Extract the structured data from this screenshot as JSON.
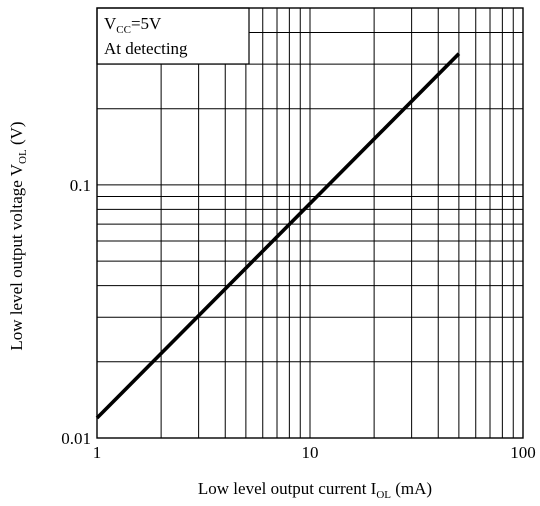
{
  "chart_data": {
    "type": "line",
    "xscale": "log",
    "yscale": "log",
    "xlim": [
      1,
      100
    ],
    "ylim": [
      0.01,
      0.5
    ],
    "grid": true,
    "x_ticks": [
      {
        "value": 1,
        "label": "1"
      },
      {
        "value": 10,
        "label": "10"
      },
      {
        "value": 100,
        "label": "100"
      }
    ],
    "y_ticks": [
      {
        "value": 0.01,
        "label": "0.01"
      },
      {
        "value": 0.1,
        "label": "0.1"
      }
    ],
    "xlabel": {
      "main": "Low level output current I",
      "sub": "OL",
      "unit": " (mA)"
    },
    "ylabel": {
      "main": "Low level output voltage V",
      "sub": "OL",
      "unit": " (V)"
    },
    "annotation": {
      "line1_main": "V",
      "line1_sub": "CC",
      "line1_rest": "=5V",
      "line2": "At detecting"
    },
    "series": [
      {
        "x": [
          1,
          50
        ],
        "y": [
          0.012,
          0.33
        ]
      }
    ]
  }
}
